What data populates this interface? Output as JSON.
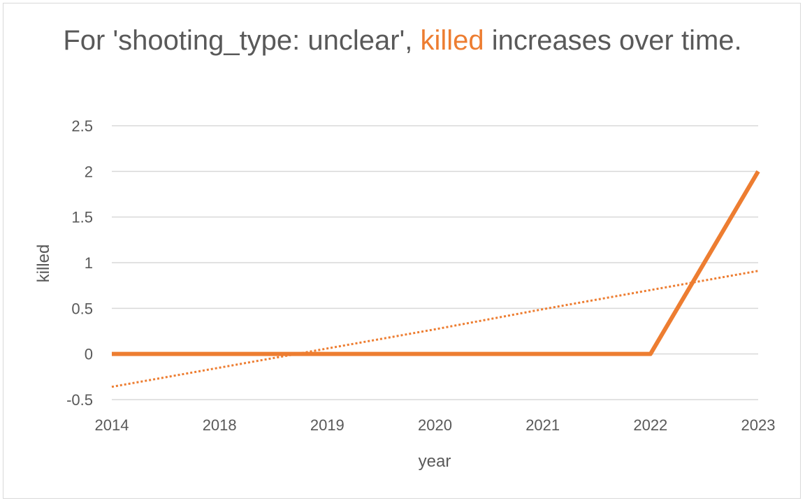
{
  "title": {
    "prefix": "For 'shooting_type: unclear', ",
    "highlight": "killed",
    "suffix": " increases over time."
  },
  "colors": {
    "series": "#ed7d31",
    "grid": "#d9d9d9",
    "text": "#595959"
  },
  "chart_data": {
    "type": "line",
    "title": "For 'shooting_type: unclear', killed increases over time.",
    "xlabel": "year",
    "ylabel": "killed",
    "categories": [
      "2014",
      "2018",
      "2019",
      "2020",
      "2021",
      "2022",
      "2023"
    ],
    "series": [
      {
        "values": [
          0,
          0,
          0,
          0,
          0,
          0,
          2
        ],
        "style": "solid"
      },
      {
        "values": [
          -0.36,
          -0.15,
          0.06,
          0.27,
          0.49,
          0.7,
          0.91
        ],
        "style": "dotted-trendline"
      }
    ],
    "ylim": [
      -0.5,
      2.5
    ],
    "yticks": [
      "-0.5",
      "0",
      "0.5",
      "1",
      "1.5",
      "2",
      "2.5"
    ],
    "grid": true,
    "legend": "none"
  }
}
